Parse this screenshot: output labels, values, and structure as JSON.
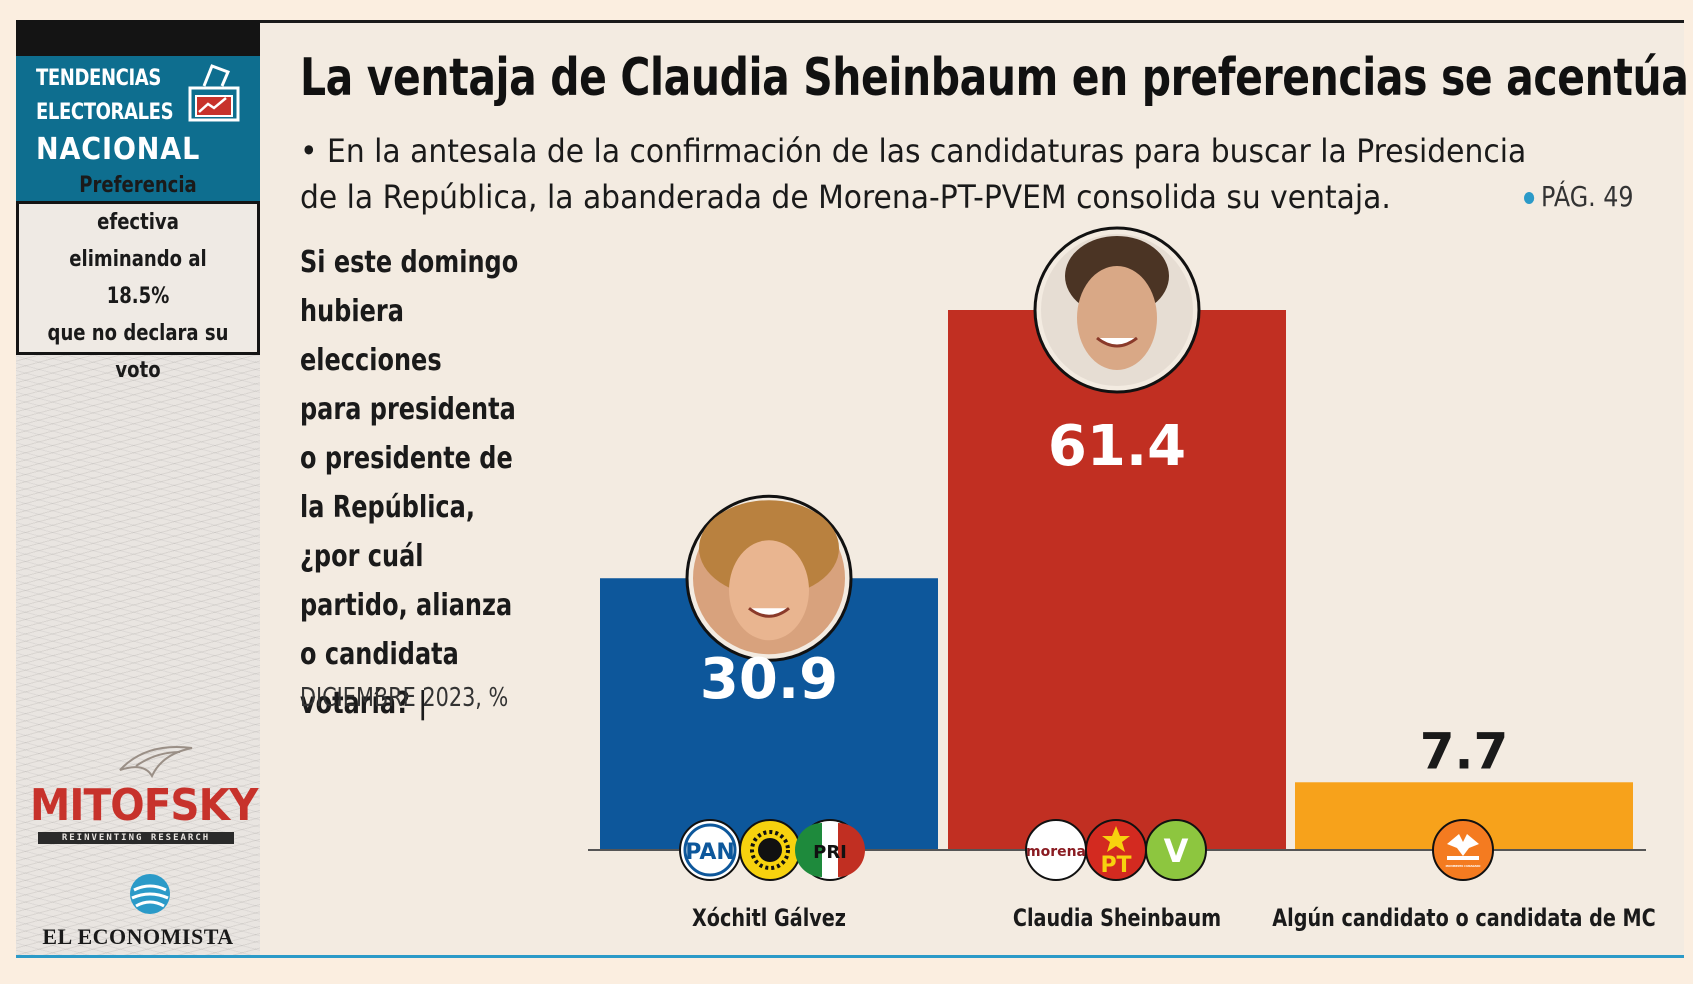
{
  "sidebar": {
    "line1": "TENDENCIAS",
    "line2": "ELECTORALES",
    "line3": "NACIONAL",
    "box_text": "Preferencia efectiva\neliminando al 18.5%\nque no declara su\nvoto",
    "mitofsky": "MITOFSKY",
    "mitofsky_tag": "REINVENTING RESEARCH",
    "economista": "EL ECONOMISTA"
  },
  "header": {
    "title": "La ventaja de Claudia Sheinbaum en preferencias se acentúa",
    "subtitle": "• En la antesala de la confirmación de las candidaturas para buscar la Presidencia de la República, la abanderada de Morena-PT-PVEM consolida su ventaja.",
    "page_ref": "PÁG. 49"
  },
  "question": "Si este domingo\nhubiera elecciones\npara presidenta\no presidente de\nla República,\n¿por cuál\npartido, alianza\no candidata\nvotaría? |",
  "note": "DICIEMBRE 2023, %",
  "colors": {
    "xochitl": "#0d579b",
    "claudia": "#c12f22",
    "mc": "#f7a21b",
    "accent": "#2b9ac8"
  },
  "party_logos": {
    "xochitl": [
      "PAN",
      "PRD",
      "PRI"
    ],
    "claudia": [
      "morena",
      "PT",
      "V"
    ],
    "mc": [
      "MOVIMIENTO CIUDADANO"
    ]
  },
  "chart_data": {
    "type": "bar",
    "categories": [
      "Xóchitl Gálvez",
      "Claudia Sheinbaum",
      "Algún candidato o candidata de MC"
    ],
    "values": [
      30.9,
      61.4,
      7.7
    ],
    "ylim": [
      0,
      61.4
    ],
    "grid": false,
    "legend": "none"
  }
}
